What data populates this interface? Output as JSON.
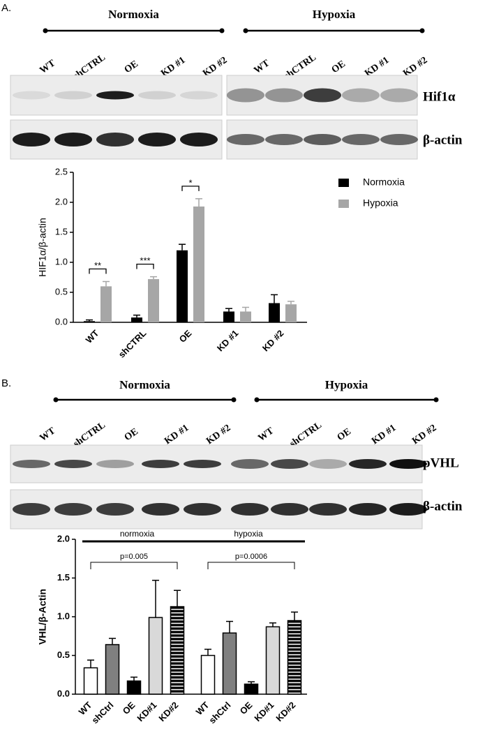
{
  "panel_a": {
    "label": "A.",
    "conditions": [
      "Normoxia",
      "Hypoxia"
    ],
    "lanes": [
      "WT",
      "shCTRL",
      "OE",
      "KD #1",
      "KD #2"
    ],
    "blots": [
      "Hif1α",
      "β-actin"
    ]
  },
  "panel_b": {
    "label": "B.",
    "conditions": [
      "Normoxia",
      "Hypoxia"
    ],
    "lanes": [
      "WT",
      "shCTRL",
      "OE",
      "KD #1",
      "KD #2"
    ],
    "blots": [
      "pVHL",
      "β-actin"
    ]
  },
  "chart_data": [
    {
      "type": "bar",
      "y_label": "HIF1α/β-actin",
      "categories": [
        "WT",
        "shCTRL",
        "OE",
        "KD #1",
        "KD #2"
      ],
      "series": [
        {
          "name": "Normoxia",
          "color": "#000000",
          "values": [
            0.02,
            0.08,
            1.2,
            0.18,
            0.32
          ],
          "errors": [
            0.02,
            0.04,
            0.1,
            0.05,
            0.14
          ]
        },
        {
          "name": "Hypoxia",
          "color": "#a6a6a6",
          "values": [
            0.6,
            0.72,
            1.93,
            0.18,
            0.3
          ],
          "errors": [
            0.08,
            0.04,
            0.13,
            0.07,
            0.05
          ]
        }
      ],
      "significance": [
        "**",
        "***",
        "*",
        null,
        null
      ],
      "ylim": [
        0,
        2.5
      ],
      "yticks": [
        {
          "value": 0,
          "label": "0.0"
        },
        0.5,
        {
          "value": 1,
          "label": "1.0"
        },
        1.5,
        {
          "value": 2,
          "label": "2.0"
        },
        2.5
      ],
      "legend": "upper right"
    },
    {
      "type": "bar",
      "y_label": "VHL/β-Actin",
      "categories": [
        "WT",
        "shCtrl",
        "OE",
        "KD#1",
        "KD#2"
      ],
      "category_colors": [
        "#ffffff",
        "#808080",
        "#000000",
        "#d9d9d9",
        "#000000"
      ],
      "hatch": [
        null,
        null,
        null,
        null,
        "horizontal"
      ],
      "series": [
        {
          "name": "normoxia",
          "values": [
            0.34,
            0.64,
            0.17,
            0.99,
            1.13
          ],
          "errors": [
            0.1,
            0.08,
            0.05,
            0.48,
            0.21
          ],
          "comparison": "p=0.005"
        },
        {
          "name": "hypoxia",
          "values": [
            0.5,
            0.79,
            0.13,
            0.87,
            0.95
          ],
          "errors": [
            0.08,
            0.15,
            0.03,
            0.05,
            0.11
          ],
          "comparison": "p=0.0006"
        }
      ],
      "ylim": [
        0,
        2
      ],
      "yticks": [
        {
          "value": 0,
          "label": "0.0"
        },
        0.5,
        {
          "value": 1,
          "label": "1.0"
        },
        1.5,
        {
          "value": 2,
          "label": "2.0"
        }
      ]
    }
  ]
}
